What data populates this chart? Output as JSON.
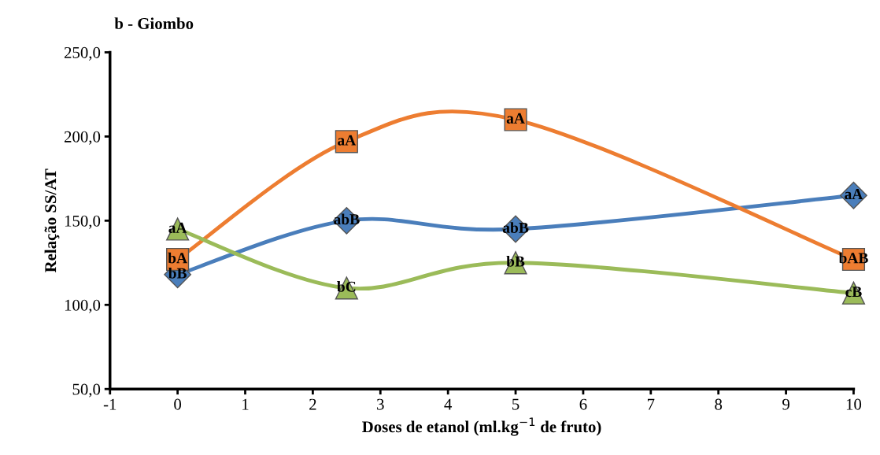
{
  "chart_data": {
    "type": "line",
    "title": "b - Giombo",
    "xlabel": "Doses de etanol (ml.kg$^{−1}$ de fruto)",
    "ylabel": "Relação SS/AT",
    "x": [
      0,
      2.5,
      5,
      10
    ],
    "xlim": [
      -1,
      10
    ],
    "xticks": [
      -1,
      0,
      1,
      2,
      3,
      4,
      5,
      6,
      7,
      8,
      9,
      10
    ],
    "ylim": [
      50,
      250
    ],
    "yticks": [
      {
        "value": 50,
        "label": "50,0"
      },
      {
        "value": 100,
        "label": "100,0"
      },
      {
        "value": 150,
        "label": "150,0"
      },
      {
        "value": 200,
        "label": "200,0"
      },
      {
        "value": 250,
        "label": "250,0"
      }
    ],
    "grid": false,
    "legend": false,
    "series": [
      {
        "color": "#4a7ebb",
        "marker": "diamond",
        "values": [
          118,
          150,
          145,
          165
        ],
        "value_labels": [
          "bB",
          "abB",
          "abB",
          "aA"
        ]
      },
      {
        "color": "#ed7d31",
        "marker": "square",
        "values": [
          127,
          197,
          210,
          127
        ],
        "value_labels": [
          "bA",
          "aA",
          "aA",
          "bAB"
        ]
      },
      {
        "color": "#9bbb59",
        "marker": "triangle",
        "values": [
          145,
          110,
          125,
          107
        ],
        "value_labels": [
          "aA",
          "bC",
          "bB",
          "cB"
        ]
      }
    ]
  }
}
